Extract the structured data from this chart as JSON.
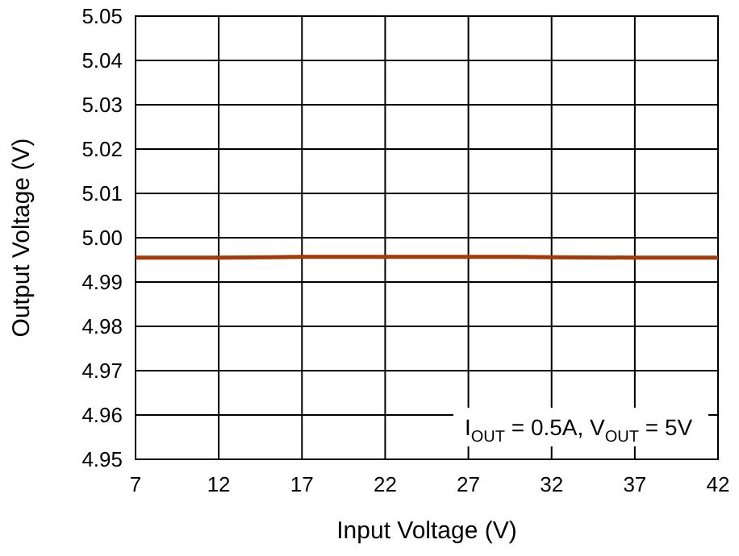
{
  "chart_data": {
    "type": "line",
    "xlabel": "Input Voltage (V)",
    "ylabel": "Output Voltage (V)",
    "x": [
      7,
      12,
      15,
      17,
      22,
      27,
      30,
      32,
      37,
      42
    ],
    "series": [
      {
        "color": "#a33a0a",
        "values": [
          4.9955,
          4.9955,
          4.9956,
          4.9957,
          4.9957,
          4.9957,
          4.9957,
          4.9956,
          4.9955,
          4.9955
        ]
      }
    ],
    "xlim": [
      7,
      42
    ],
    "xticks": [
      7,
      12,
      17,
      22,
      27,
      32,
      37,
      42
    ],
    "ylim": [
      4.95,
      5.05
    ],
    "yticks": [
      {
        "value": 4.95,
        "label": "4.95"
      },
      {
        "value": 4.96,
        "label": "4.96"
      },
      {
        "value": 4.97,
        "label": "4.97"
      },
      {
        "value": 4.98,
        "label": "4.98"
      },
      {
        "value": 4.99,
        "label": "4.99"
      },
      {
        "value": 5.0,
        "label": "5.00"
      },
      {
        "value": 5.01,
        "label": "5.01"
      },
      {
        "value": 5.02,
        "label": "5.02"
      },
      {
        "value": 5.03,
        "label": "5.03"
      },
      {
        "value": 5.04,
        "label": "5.04"
      },
      {
        "value": 5.05,
        "label": "5.05"
      }
    ],
    "grid": true,
    "marker": "none",
    "line_style": "solid",
    "annotations": [
      "I$_{OUT}$ = 0.5A, V$_{OUT}$ = 5V"
    ]
  }
}
